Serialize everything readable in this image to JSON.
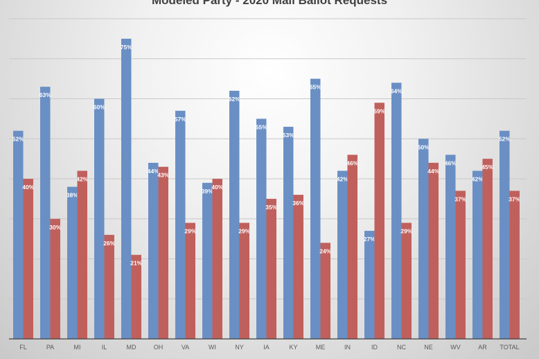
{
  "chart_data": {
    "type": "bar",
    "title": "Modeled Party - 2020 Mail Ballot Requests",
    "xlabel": "",
    "ylabel": "",
    "ylim": [
      0,
      80
    ],
    "grid": true,
    "categories": [
      "FL",
      "PA",
      "MI",
      "IL",
      "MD",
      "OH",
      "VA",
      "WI",
      "NY",
      "IA",
      "KY",
      "ME",
      "IN",
      "ID",
      "NC",
      "NE",
      "WV",
      "AR",
      "TOTAL"
    ],
    "series": [
      {
        "color": "#6a8fc4",
        "values": [
          52,
          63,
          38,
          60,
          75,
          44,
          57,
          39,
          62,
          55,
          53,
          65,
          42,
          27,
          64,
          50,
          46,
          42,
          52
        ]
      },
      {
        "color": "#c0605d",
        "values": [
          40,
          30,
          42,
          26,
          21,
          43,
          29,
          40,
          29,
          35,
          36,
          24,
          46,
          59,
          29,
          44,
          37,
          45,
          37
        ]
      }
    ],
    "label_suffix": "%"
  }
}
